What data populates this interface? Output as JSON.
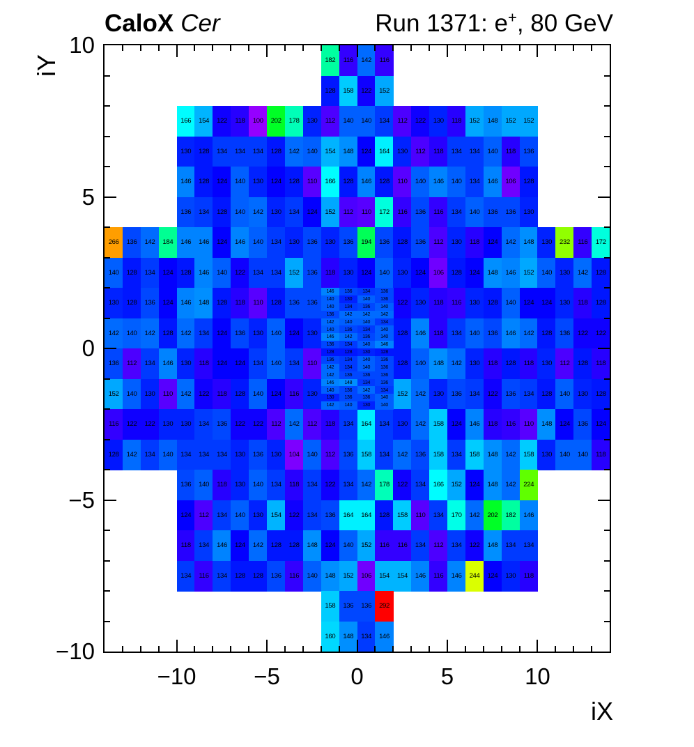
{
  "header": {
    "left_title_bold": "CaloX",
    "left_title_italic": "Cer",
    "right_title": {
      "pre": "Run 1371: e",
      "sup": "+",
      "post": ", 80 GeV"
    }
  },
  "chart_data": {
    "type": "heatmap",
    "title": "CaloX Cer — Run 1371: e+, 80 GeV",
    "xlabel": "iX",
    "ylabel": "iY",
    "x_range": [
      -14,
      14
    ],
    "y_range": [
      -10,
      10
    ],
    "grid": false,
    "z_min": 100,
    "z_max": 292,
    "palette": {
      "type": "rainbow",
      "low_color_hint": "#7700ee",
      "mid_color_hint": "#00cc44",
      "high_color_hint": "#ff0000",
      "hue_start": 275,
      "hue_end": 0
    },
    "cell_text_color": "#000000",
    "x_ticks": [
      {
        "v": -10,
        "label": "−10"
      },
      {
        "v": -5,
        "label": "−5"
      },
      {
        "v": 0,
        "label": "0"
      },
      {
        "v": 5,
        "label": "5"
      },
      {
        "v": 10,
        "label": "10"
      }
    ],
    "y_ticks": [
      {
        "v": 10,
        "label": "10"
      },
      {
        "v": 5,
        "label": "5"
      },
      {
        "v": 0,
        "label": "0"
      },
      {
        "v": -5,
        "label": "−5"
      },
      {
        "v": -10,
        "label": "−10"
      }
    ],
    "minor_tick_step": 1,
    "rows": [
      {
        "y_top": 10,
        "h": 1,
        "segments": [
          {
            "x": -2,
            "values": [
              182,
              116,
              142,
              116
            ]
          }
        ]
      },
      {
        "y_top": 9,
        "h": 1,
        "segments": [
          {
            "x": -2,
            "values": [
              128,
              158,
              122,
              152
            ]
          }
        ]
      },
      {
        "y_top": 8,
        "h": 1,
        "segments": [
          {
            "x": -10,
            "values": [
              166,
              154,
              122,
              118,
              100,
              202,
              178,
              130,
              112,
              140,
              140,
              134,
              112,
              122,
              130,
              118,
              152,
              148,
              152,
              152
            ]
          }
        ]
      },
      {
        "y_top": 7,
        "h": 1,
        "segments": [
          {
            "x": -10,
            "values": [
              130,
              128,
              134,
              134,
              134,
              128,
              142,
              140,
              154,
              148,
              124,
              164,
              130,
              112,
              118,
              134,
              134,
              140,
              118,
              136
            ]
          }
        ]
      },
      {
        "y_top": 6,
        "h": 1,
        "segments": [
          {
            "x": -10,
            "values": [
              146,
              128,
              124,
              140,
              130,
              124,
              128,
              110,
              166,
              128,
              146,
              128,
              110,
              140,
              146,
              140,
              134,
              146,
              106,
              128
            ]
          }
        ]
      },
      {
        "y_top": 5,
        "h": 1,
        "segments": [
          {
            "x": -10,
            "values": [
              136,
              134,
              128,
              140,
              142,
              130,
              134,
              124,
              152,
              112,
              110,
              172,
              116,
              136,
              116,
              134,
              140,
              136,
              136,
              130
            ]
          }
        ]
      },
      {
        "y_top": 4,
        "h": 1,
        "segments": [
          {
            "x": -14,
            "values": [
              266,
              136,
              142,
              184,
              146,
              146,
              124,
              146,
              140,
              134,
              130,
              136,
              130,
              136,
              194,
              136,
              128,
              136,
              112,
              130,
              118,
              124,
              142,
              148,
              130,
              232,
              116,
              172
            ]
          }
        ]
      },
      {
        "y_top": 3,
        "h": 1,
        "segments": [
          {
            "x": -14,
            "values": [
              140,
              128,
              134,
              124,
              128,
              146,
              140,
              122,
              134,
              134,
              152,
              136,
              118,
              130,
              124,
              140,
              130,
              124,
              106,
              128,
              124,
              148,
              146,
              152,
              140,
              130,
              142,
              128
            ]
          }
        ]
      },
      {
        "y_top": 2,
        "h": 1,
        "segments": [
          {
            "x": -14,
            "values": [
              130,
              128,
              136,
              124,
              146,
              148,
              128,
              118,
              110,
              128,
              136,
              136
            ]
          },
          {
            "x": 2,
            "values": [
              122,
              130,
              118,
              116,
              130,
              128,
              140,
              124,
              124,
              130,
              118,
              128
            ]
          }
        ]
      },
      {
        "y_top": 1,
        "h": 1,
        "segments": [
          {
            "x": -14,
            "values": [
              142,
              140,
              142,
              128,
              142,
              134,
              124,
              136,
              130,
              140,
              124,
              130
            ]
          },
          {
            "x": 2,
            "values": [
              128,
              146,
              118,
              134,
              140,
              136,
              146,
              142,
              128,
              136,
              122,
              122
            ]
          }
        ]
      },
      {
        "y_top": 0,
        "h": 1,
        "segments": [
          {
            "x": -14,
            "values": [
              136,
              112,
              134,
              146,
              130,
              118,
              124,
              124,
              134,
              140,
              134,
              110
            ]
          },
          {
            "x": 2,
            "values": [
              128,
              140,
              148,
              142,
              130,
              118,
              128,
              118,
              130,
              112,
              128,
              118
            ]
          }
        ]
      },
      {
        "y_top": -1,
        "h": 1,
        "segments": [
          {
            "x": -14,
            "values": [
              152,
              140,
              130,
              110,
              142,
              122,
              118,
              128,
              140,
              124,
              116,
              130
            ]
          },
          {
            "x": 2,
            "values": [
              152,
              142,
              130,
              136,
              134,
              122,
              136,
              134,
              128,
              140,
              130,
              128
            ]
          }
        ]
      },
      {
        "y_top": -2,
        "h": 1,
        "segments": [
          {
            "x": -14,
            "values": [
              116,
              122,
              122,
              130,
              130,
              134,
              136,
              122,
              122,
              112,
              142,
              112,
              118,
              134,
              164,
              134,
              130,
              142,
              158,
              124,
              146,
              118,
              116,
              110,
              148,
              124,
              136,
              124
            ]
          }
        ]
      },
      {
        "y_top": -3,
        "h": 1,
        "segments": [
          {
            "x": -14,
            "values": [
              128,
              142,
              134,
              140,
              134,
              134,
              134,
              130,
              136,
              130,
              104,
              140,
              112,
              136,
              158,
              134,
              142,
              136,
              158,
              134,
              158,
              148,
              142,
              158,
              130,
              140,
              140,
              118
            ]
          }
        ]
      },
      {
        "y_top": -4,
        "h": 1,
        "segments": [
          {
            "x": -10,
            "values": [
              136,
              140,
              118,
              130,
              140,
              134,
              118,
              134,
              122,
              134,
              142,
              178,
              122,
              134,
              166,
              152,
              124,
              148,
              142,
              224
            ]
          }
        ]
      },
      {
        "y_top": -5,
        "h": 1,
        "segments": [
          {
            "x": -10,
            "values": [
              124,
              112,
              134,
              140,
              130,
              154,
              122,
              134,
              136,
              164,
              164,
              128,
              158,
              110,
              134,
              170,
              142,
              202,
              182,
              146
            ]
          }
        ]
      },
      {
        "y_top": -6,
        "h": 1,
        "segments": [
          {
            "x": -10,
            "values": [
              118,
              134,
              146,
              124,
              142,
              128,
              128,
              148,
              124,
              140,
              152,
              116,
              116,
              134,
              112,
              134,
              122,
              148,
              134,
              134
            ]
          }
        ]
      },
      {
        "y_top": -7,
        "h": 1,
        "segments": [
          {
            "x": -10,
            "values": [
              134,
              116,
              134,
              128,
              128,
              136,
              116,
              140,
              148,
              152,
              106,
              154,
              154,
              146,
              116,
              146,
              244,
              124,
              130,
              118
            ]
          }
        ]
      },
      {
        "y_top": -8,
        "h": 1,
        "segments": [
          {
            "x": -2,
            "values": [
              158,
              136,
              136,
              292
            ]
          }
        ]
      },
      {
        "y_top": -9,
        "h": 1,
        "segments": [
          {
            "x": -2,
            "values": [
              160,
              148,
              134,
              146
            ]
          }
        ]
      },
      {
        "y_top": 2.0,
        "h": 0.25,
        "segments": [
          {
            "x": -2,
            "values": [
              146,
              136,
              134,
              136
            ]
          }
        ]
      },
      {
        "y_top": 1.75,
        "h": 0.25,
        "segments": [
          {
            "x": -2,
            "values": [
              140,
              130,
              140,
              136
            ]
          }
        ]
      },
      {
        "y_top": 1.5,
        "h": 0.25,
        "segments": [
          {
            "x": -2,
            "values": [
              140,
              134,
              136,
              140
            ]
          }
        ]
      },
      {
        "y_top": 1.25,
        "h": 0.25,
        "segments": [
          {
            "x": -2,
            "values": [
              136,
              142,
              142,
              142
            ]
          }
        ]
      },
      {
        "y_top": 1.0,
        "h": 0.25,
        "segments": [
          {
            "x": -2,
            "values": [
              142,
              140,
              140,
              134
            ]
          }
        ]
      },
      {
        "y_top": 0.75,
        "h": 0.25,
        "segments": [
          {
            "x": -2,
            "values": [
              140,
              136,
              134,
              140
            ]
          }
        ]
      },
      {
        "y_top": 0.5,
        "h": 0.25,
        "segments": [
          {
            "x": -2,
            "values": [
              146,
              142,
              136,
              140
            ]
          }
        ]
      },
      {
        "y_top": 0.25,
        "h": 0.25,
        "segments": [
          {
            "x": -2,
            "values": [
              136,
              134,
              140,
              146
            ]
          }
        ]
      },
      {
        "y_top": 0.0,
        "h": 0.25,
        "segments": [
          {
            "x": -2,
            "values": [
              128,
              128,
              130,
              128
            ]
          }
        ]
      },
      {
        "y_top": -0.25,
        "h": 0.25,
        "segments": [
          {
            "x": -2,
            "values": [
              136,
              134,
              140,
              136
            ]
          }
        ]
      },
      {
        "y_top": -0.5,
        "h": 0.25,
        "segments": [
          {
            "x": -2,
            "values": [
              142,
              134,
              140,
              136
            ]
          }
        ]
      },
      {
        "y_top": -0.75,
        "h": 0.25,
        "segments": [
          {
            "x": -2,
            "values": [
              142,
              136,
              136,
              136
            ]
          }
        ]
      },
      {
        "y_top": -1.0,
        "h": 0.25,
        "segments": [
          {
            "x": -2,
            "values": [
              146,
              148,
              134,
              136
            ]
          }
        ]
      },
      {
        "y_top": -1.25,
        "h": 0.25,
        "segments": [
          {
            "x": -2,
            "values": [
              140,
              136,
              142,
              134
            ]
          }
        ]
      },
      {
        "y_top": -1.5,
        "h": 0.25,
        "segments": [
          {
            "x": -2,
            "values": [
              130,
              136,
              136,
              140
            ]
          }
        ]
      },
      {
        "y_top": -1.75,
        "h": 0.25,
        "segments": [
          {
            "x": -2,
            "values": [
              142,
              140,
              130,
              140
            ]
          }
        ]
      }
    ]
  }
}
